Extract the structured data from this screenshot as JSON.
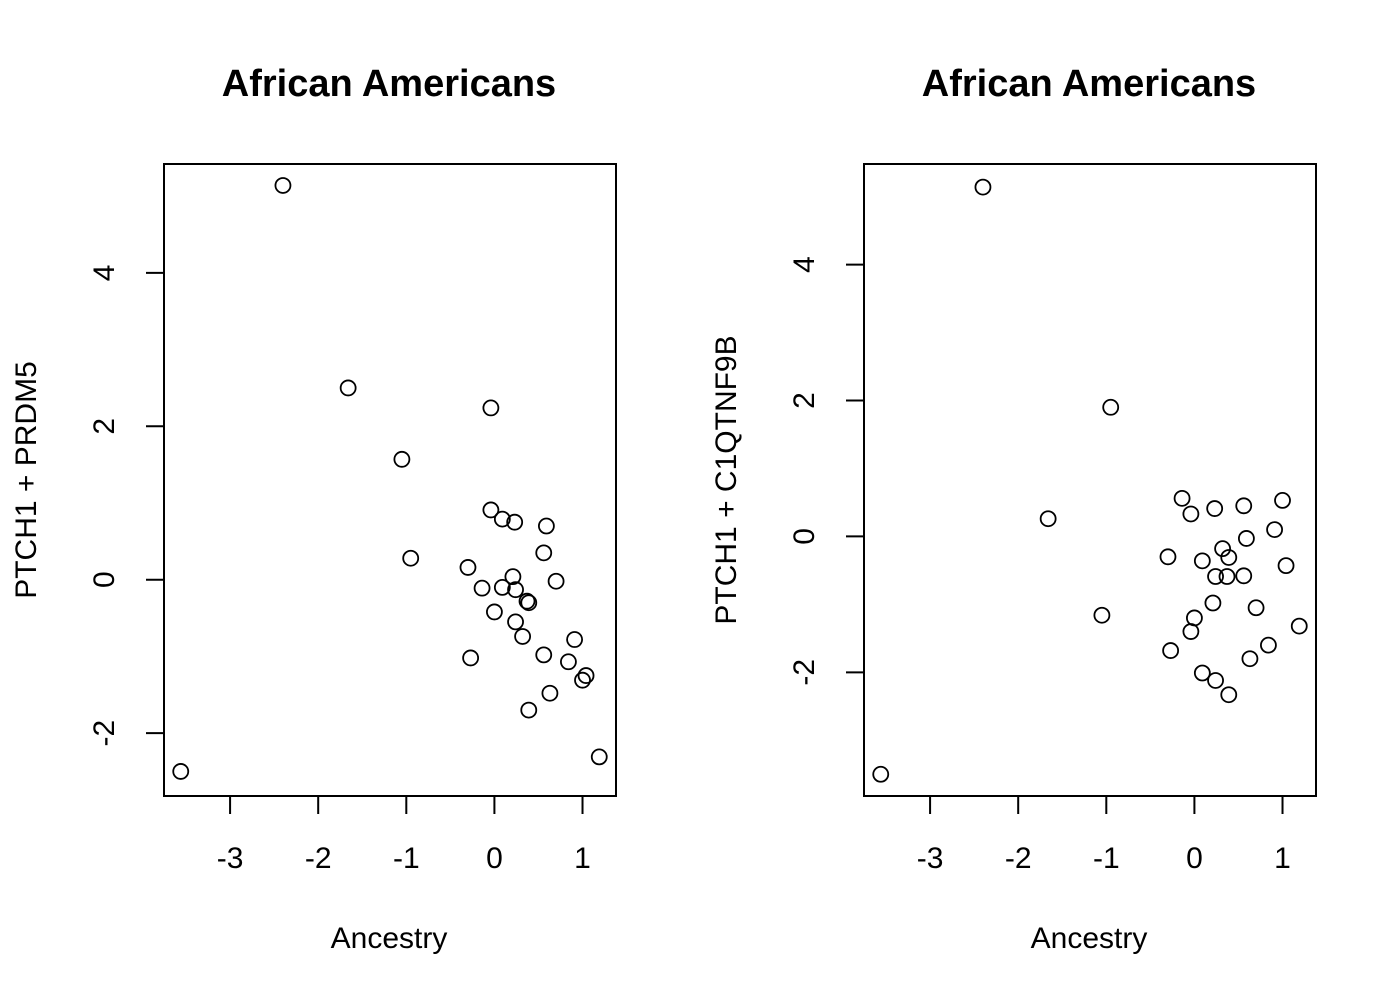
{
  "chart_data": [
    {
      "type": "scatter",
      "title": "African Americans",
      "xlabel": "Ancestry",
      "ylabel": "PTCH1 + PRDM5",
      "xlim": [
        -3.75,
        1.38
      ],
      "ylim": [
        -2.82,
        5.42
      ],
      "xticks": [
        -3,
        -2,
        -1,
        0,
        1
      ],
      "yticks": [
        -2,
        0,
        2,
        4
      ],
      "grid": false,
      "legend": "none",
      "points": [
        {
          "x": -3.56,
          "y": -2.5
        },
        {
          "x": -2.4,
          "y": 5.14
        },
        {
          "x": -1.66,
          "y": 2.5
        },
        {
          "x": -1.05,
          "y": 1.57
        },
        {
          "x": -0.95,
          "y": 0.28
        },
        {
          "x": -0.3,
          "y": 0.16
        },
        {
          "x": -0.27,
          "y": -1.02
        },
        {
          "x": -0.14,
          "y": -0.11
        },
        {
          "x": -0.04,
          "y": 2.24
        },
        {
          "x": -0.04,
          "y": 0.91
        },
        {
          "x": 0.0,
          "y": -0.42
        },
        {
          "x": 0.09,
          "y": 0.79
        },
        {
          "x": 0.09,
          "y": -0.1
        },
        {
          "x": 0.21,
          "y": 0.04
        },
        {
          "x": 0.23,
          "y": 0.75
        },
        {
          "x": 0.24,
          "y": -0.13
        },
        {
          "x": 0.24,
          "y": -0.55
        },
        {
          "x": 0.32,
          "y": -0.74
        },
        {
          "x": 0.37,
          "y": -0.28
        },
        {
          "x": 0.39,
          "y": -0.3
        },
        {
          "x": 0.39,
          "y": -1.7
        },
        {
          "x": 0.56,
          "y": 0.35
        },
        {
          "x": 0.56,
          "y": -0.98
        },
        {
          "x": 0.59,
          "y": 0.7
        },
        {
          "x": 0.63,
          "y": -1.48
        },
        {
          "x": 0.7,
          "y": -0.02
        },
        {
          "x": 0.84,
          "y": -1.07
        },
        {
          "x": 0.91,
          "y": -0.78
        },
        {
          "x": 1.0,
          "y": -1.31
        },
        {
          "x": 1.04,
          "y": -1.25
        },
        {
          "x": 1.19,
          "y": -2.31
        }
      ]
    },
    {
      "type": "scatter",
      "title": "African Americans",
      "xlabel": "Ancestry",
      "ylabel": "PTCH1 + C1QTNF9B",
      "xlim": [
        -3.75,
        1.38
      ],
      "ylim": [
        -3.82,
        5.48
      ],
      "xticks": [
        -3,
        -2,
        -1,
        0,
        1
      ],
      "yticks": [
        -2,
        0,
        2,
        4
      ],
      "grid": false,
      "legend": "none",
      "points": [
        {
          "x": -3.56,
          "y": -3.5
        },
        {
          "x": -2.4,
          "y": 5.14
        },
        {
          "x": -1.66,
          "y": 0.26
        },
        {
          "x": -1.05,
          "y": -1.16
        },
        {
          "x": -0.95,
          "y": 1.9
        },
        {
          "x": -0.3,
          "y": -0.3
        },
        {
          "x": -0.27,
          "y": -1.68
        },
        {
          "x": -0.14,
          "y": 0.56
        },
        {
          "x": -0.04,
          "y": 0.33
        },
        {
          "x": -0.04,
          "y": -1.4
        },
        {
          "x": 0.0,
          "y": -1.2
        },
        {
          "x": 0.09,
          "y": -0.36
        },
        {
          "x": 0.09,
          "y": -2.01
        },
        {
          "x": 0.21,
          "y": -0.98
        },
        {
          "x": 0.23,
          "y": 0.41
        },
        {
          "x": 0.24,
          "y": -0.59
        },
        {
          "x": 0.24,
          "y": -2.12
        },
        {
          "x": 0.32,
          "y": -0.18
        },
        {
          "x": 0.37,
          "y": -0.59
        },
        {
          "x": 0.39,
          "y": -0.31
        },
        {
          "x": 0.39,
          "y": -2.33
        },
        {
          "x": 0.56,
          "y": 0.45
        },
        {
          "x": 0.56,
          "y": -0.58
        },
        {
          "x": 0.59,
          "y": -0.03
        },
        {
          "x": 0.63,
          "y": -1.8
        },
        {
          "x": 0.7,
          "y": -1.05
        },
        {
          "x": 0.84,
          "y": -1.6
        },
        {
          "x": 0.91,
          "y": 0.1
        },
        {
          "x": 1.0,
          "y": 0.53
        },
        {
          "x": 1.04,
          "y": -0.43
        },
        {
          "x": 1.19,
          "y": -1.32
        }
      ]
    }
  ]
}
